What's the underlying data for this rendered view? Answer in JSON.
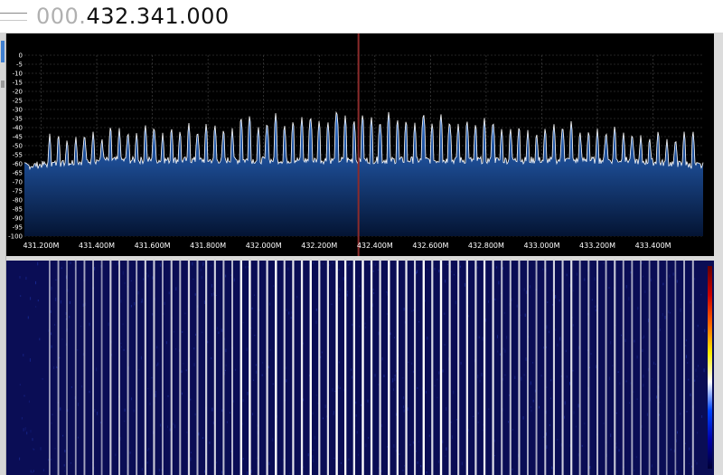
{
  "frequency_display": {
    "leading": "000.",
    "value": "432.341.000"
  },
  "spectrum": {
    "y_ticks": [
      "0",
      "-5",
      "-10",
      "-15",
      "-20",
      "-25",
      "-30",
      "-35",
      "-40",
      "-45",
      "-50",
      "-55",
      "-60",
      "-65",
      "-70",
      "-75",
      "-80",
      "-85",
      "-90",
      "-95",
      "-100"
    ],
    "x_ticks": [
      "431.200M",
      "431.400M",
      "431.600M",
      "431.800M",
      "432.000M",
      "432.200M",
      "432.400M",
      "432.600M",
      "432.800M",
      "433.000M",
      "433.200M",
      "433.400M"
    ],
    "x_tick_values_mhz": [
      431.2,
      431.4,
      431.6,
      431.8,
      432.0,
      432.2,
      432.4,
      432.6,
      432.8,
      433.0,
      433.2,
      433.4
    ],
    "x_range_mhz": [
      431.14,
      433.58
    ],
    "y_range_db": [
      -100,
      0
    ],
    "tuned_mhz": 432.341,
    "noise_floor_db": -58,
    "spike_spacing_mhz": 0.03125,
    "colors": {
      "grid": "#4a4a4a",
      "trace": "#ffffff",
      "fill_top": "#2c6fd0",
      "fill_bottom": "#041433",
      "cursor": "#8b2b2b",
      "label": "#ffffff"
    }
  },
  "waterfall": {
    "colors": {
      "background": "#0a0d55",
      "speckle": "#1d2fa0",
      "line": "#ffffff"
    },
    "colorbar": [
      "#000033",
      "#0000aa",
      "#0044ff",
      "#ffffff",
      "#ffee00",
      "#ff6600",
      "#cc0000",
      "#660000"
    ]
  }
}
